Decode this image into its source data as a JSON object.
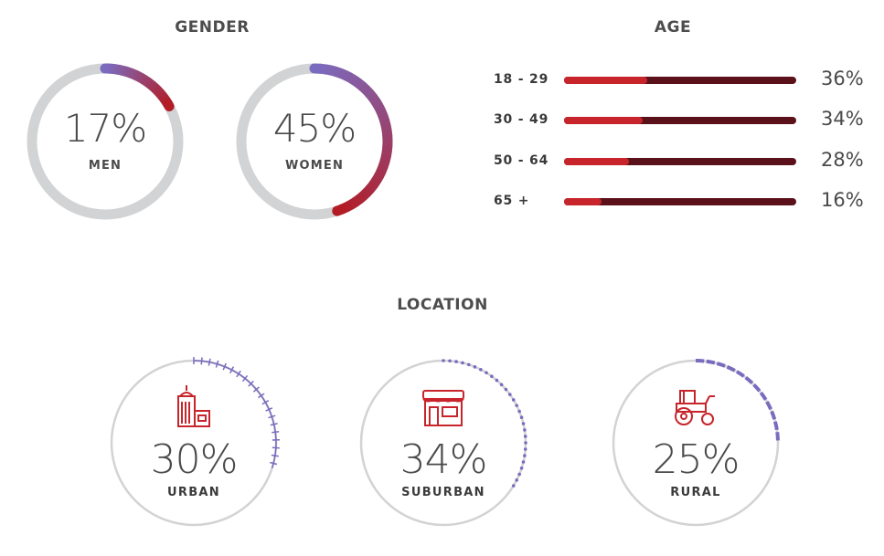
{
  "chart_data": [
    {
      "type": "donut",
      "title": "GENDER",
      "series": [
        {
          "name": "MEN",
          "value": 17,
          "label": "17%"
        },
        {
          "name": "WOMEN",
          "value": 45,
          "label": "45%"
        }
      ],
      "colors": {
        "track": "#d2d3d4",
        "start": "#7b6bbf",
        "end": "#b31c24"
      }
    },
    {
      "type": "bar",
      "orientation": "horizontal",
      "title": "AGE",
      "categories": [
        "18 - 29",
        "30 - 49",
        "50 - 64",
        "65 +"
      ],
      "values": [
        36,
        34,
        28,
        16
      ],
      "labels": [
        "36%",
        "34%",
        "28%",
        "16%"
      ],
      "colors": {
        "fill": "#c7252b",
        "track": "#5a111a"
      }
    },
    {
      "type": "radial",
      "title": "LOCATION",
      "series": [
        {
          "name": "URBAN",
          "value": 30,
          "label": "30%",
          "icon": "building-icon"
        },
        {
          "name": "SUBURBAN",
          "value": 34,
          "label": "34%",
          "icon": "storefront-icon"
        },
        {
          "name": "RURAL",
          "value": 25,
          "label": "25%",
          "icon": "tractor-icon"
        }
      ],
      "colors": {
        "circle": "#d2d3d4",
        "ticks": "#7b6bbf",
        "icon": "#c7252b"
      }
    }
  ]
}
